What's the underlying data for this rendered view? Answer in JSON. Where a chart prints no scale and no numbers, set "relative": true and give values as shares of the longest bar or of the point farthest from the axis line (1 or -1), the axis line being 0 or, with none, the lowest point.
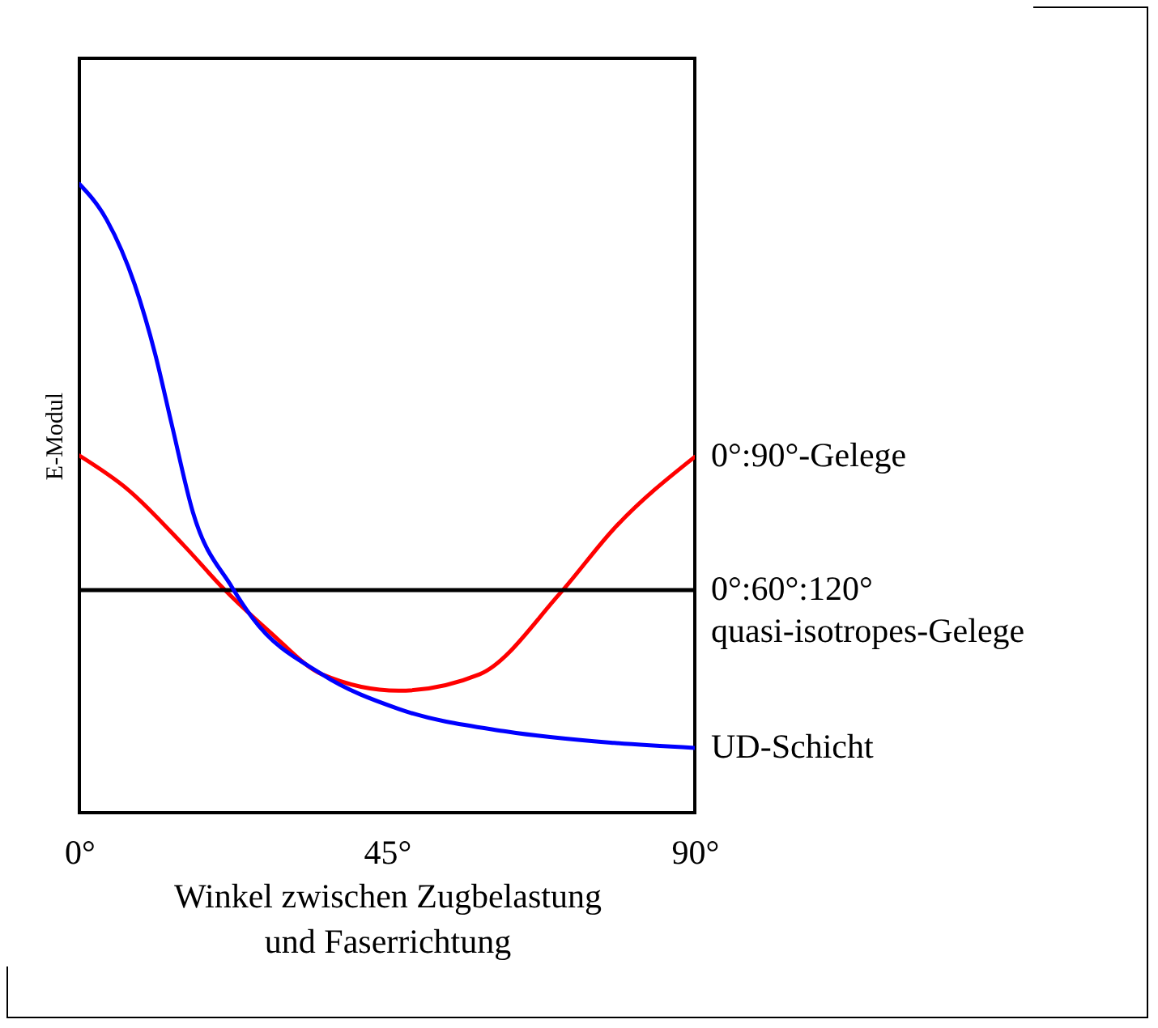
{
  "chart_data": {
    "type": "line",
    "relative": true,
    "xlabel": "Winkel zwischen Zugbelastung\nund Faserrichtung",
    "ylabel": "E-Modul",
    "xlim": [
      0,
      90
    ],
    "xticks": [
      {
        "value": 0,
        "label": "0°"
      },
      {
        "value": 45,
        "label": "45°"
      },
      {
        "value": 90,
        "label": "90°"
      }
    ],
    "grid": false,
    "legend": false,
    "series": [
      {
        "name": "0°:90°-Gelege",
        "color": "#ff0000",
        "x": [
          0,
          7.1,
          15.2,
          21.3,
          27.7,
          35.5,
          46.7,
          58.5,
          70.3,
          78.2,
          90
        ],
        "values": [
          0.568,
          0.514,
          0.426,
          0.354,
          0.289,
          0.22,
          0.194,
          0.22,
          0.349,
          0.452,
          0.566
        ]
      },
      {
        "name": "0°:60°:120° quasi-isotropes-Gelege",
        "color": "#000000",
        "x": [
          0,
          90
        ],
        "values": [
          0.354,
          0.354
        ]
      },
      {
        "name": "UD-Schicht",
        "color": "#0000ff",
        "x": [
          0,
          4,
          8.1,
          11.1,
          13.5,
          16.6,
          22.3,
          25.3,
          35.5,
          46.7,
          62.5,
          78.2,
          90
        ],
        "values": [
          1,
          0.943,
          0.84,
          0.729,
          0.618,
          0.478,
          0.359,
          0.31,
          0.22,
          0.165,
          0.129,
          0.111,
          0.103
        ]
      }
    ]
  }
}
